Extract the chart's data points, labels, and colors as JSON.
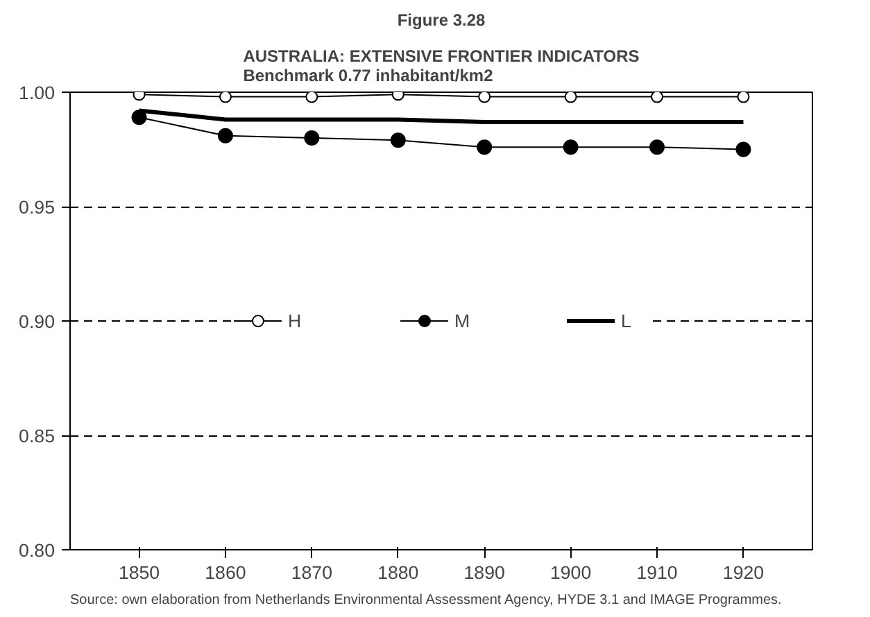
{
  "chart_data": {
    "type": "line",
    "title": "Figure 3.28",
    "subtitle": "AUSTRALIA: EXTENSIVE FRONTIER INDICATORS\nBenchmark 0.77 inhabitant/km2",
    "categories": [
      "1850",
      "1860",
      "1870",
      "1880",
      "1890",
      "1900",
      "1910",
      "1920"
    ],
    "series": [
      {
        "name": "H",
        "color": "#000000",
        "marker": "open_circle",
        "values": [
          0.999,
          0.998,
          0.998,
          0.999,
          0.998,
          0.998,
          0.998,
          0.998
        ]
      },
      {
        "name": "M",
        "color": "#000000",
        "marker": "circle",
        "values": [
          0.989,
          0.981,
          0.98,
          0.979,
          0.976,
          0.976,
          0.976,
          0.975
        ]
      },
      {
        "name": "L",
        "color": "#000000",
        "marker": "none",
        "values": [
          0.992,
          0.988,
          0.988,
          0.988,
          0.987,
          0.987,
          0.987,
          0.987
        ]
      }
    ],
    "ylim": [
      0.8,
      1.0
    ],
    "yticks": [
      {
        "value": 0.8,
        "label": "0.80"
      },
      {
        "value": 0.85,
        "label": "0.85"
      },
      {
        "value": 0.9,
        "label": "0.90"
      },
      {
        "value": 0.95,
        "label": "0.95"
      },
      {
        "value": 1.0,
        "label": "1.00"
      }
    ],
    "grid": "y",
    "legend": "center",
    "annotations": [
      "Source: own elaboration from Netherlands Environmental Assessment Agency, HYDE 3.1 and IMAGE Programmes."
    ]
  }
}
